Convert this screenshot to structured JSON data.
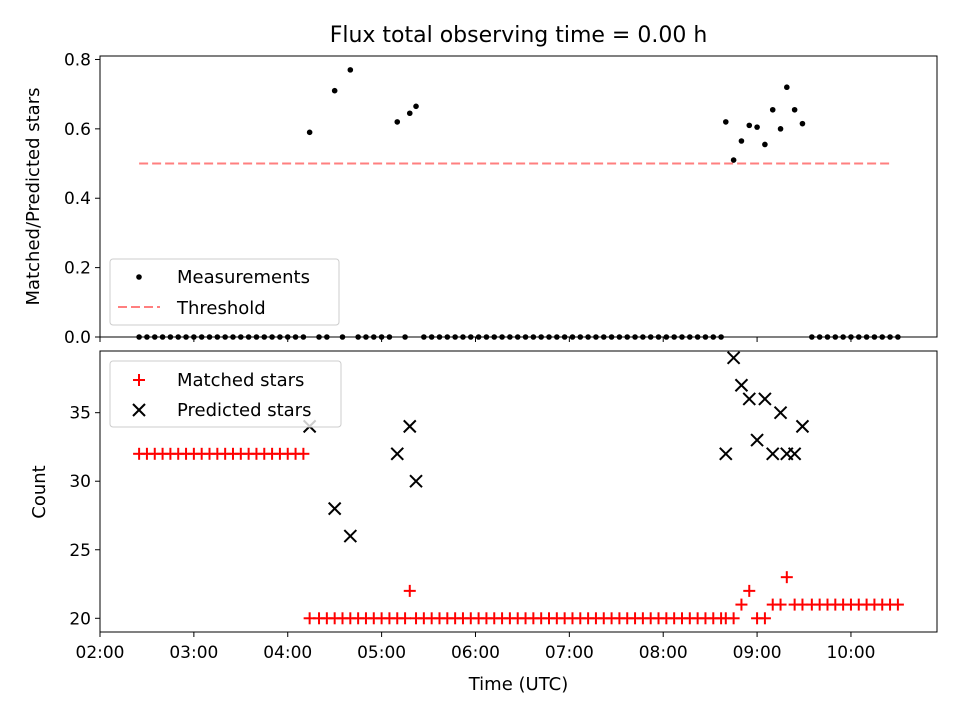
{
  "chart_data": [
    {
      "type": "scatter",
      "title": "Flux total observing time = 0.00 h",
      "xlabel": "",
      "ylabel": "Matched/Predicted stars",
      "xlim": [
        "02:00",
        "10:55"
      ],
      "ylim": [
        0,
        0.81
      ],
      "y_ticks": [
        "0.0",
        "0.2",
        "0.4",
        "0.6",
        "0.8"
      ],
      "legend_position": "lower-left",
      "series": [
        {
          "name": "Measurements",
          "marker": "dot",
          "color": "#000000",
          "points": [
            [
              "02:25",
              0
            ],
            [
              "02:30",
              0
            ],
            [
              "02:35",
              0
            ],
            [
              "02:40",
              0
            ],
            [
              "02:45",
              0
            ],
            [
              "02:50",
              0
            ],
            [
              "02:55",
              0
            ],
            [
              "03:00",
              0
            ],
            [
              "03:05",
              0
            ],
            [
              "03:10",
              0
            ],
            [
              "03:15",
              0
            ],
            [
              "03:20",
              0
            ],
            [
              "03:25",
              0
            ],
            [
              "03:30",
              0
            ],
            [
              "03:35",
              0
            ],
            [
              "03:40",
              0
            ],
            [
              "03:45",
              0
            ],
            [
              "03:50",
              0
            ],
            [
              "03:55",
              0
            ],
            [
              "04:00",
              0
            ],
            [
              "04:05",
              0
            ],
            [
              "04:10",
              0
            ],
            [
              "04:14",
              0.59
            ],
            [
              "04:20",
              0
            ],
            [
              "04:25",
              0
            ],
            [
              "04:30",
              0.71
            ],
            [
              "04:40",
              0.77
            ],
            [
              "04:35",
              0
            ],
            [
              "04:45",
              0
            ],
            [
              "04:50",
              0
            ],
            [
              "04:55",
              0
            ],
            [
              "05:00",
              0
            ],
            [
              "05:05",
              0
            ],
            [
              "05:10",
              0.62
            ],
            [
              "05:15",
              0
            ],
            [
              "05:18",
              0.645
            ],
            [
              "05:22",
              0.665
            ],
            [
              "05:27",
              0
            ],
            [
              "05:32",
              0
            ],
            [
              "05:37",
              0
            ],
            [
              "05:42",
              0
            ],
            [
              "05:47",
              0
            ],
            [
              "05:52",
              0
            ],
            [
              "05:57",
              0
            ],
            [
              "06:02",
              0
            ],
            [
              "06:07",
              0
            ],
            [
              "06:12",
              0
            ],
            [
              "06:17",
              0
            ],
            [
              "06:22",
              0
            ],
            [
              "06:27",
              0
            ],
            [
              "06:32",
              0
            ],
            [
              "06:37",
              0
            ],
            [
              "06:42",
              0
            ],
            [
              "06:47",
              0
            ],
            [
              "06:52",
              0
            ],
            [
              "06:57",
              0
            ],
            [
              "07:02",
              0
            ],
            [
              "07:07",
              0
            ],
            [
              "07:12",
              0
            ],
            [
              "07:17",
              0
            ],
            [
              "07:22",
              0
            ],
            [
              "07:27",
              0
            ],
            [
              "07:32",
              0
            ],
            [
              "07:37",
              0
            ],
            [
              "07:42",
              0
            ],
            [
              "07:47",
              0
            ],
            [
              "07:52",
              0
            ],
            [
              "07:57",
              0
            ],
            [
              "08:02",
              0
            ],
            [
              "08:07",
              0
            ],
            [
              "08:12",
              0
            ],
            [
              "08:17",
              0
            ],
            [
              "08:22",
              0
            ],
            [
              "08:27",
              0
            ],
            [
              "08:32",
              0
            ],
            [
              "08:37",
              0
            ],
            [
              "08:40",
              0.62
            ],
            [
              "08:45",
              0.51
            ],
            [
              "08:50",
              0.565
            ],
            [
              "08:55",
              0.61
            ],
            [
              "09:00",
              0.605
            ],
            [
              "09:05",
              0.555
            ],
            [
              "09:10",
              0.655
            ],
            [
              "09:15",
              0.6
            ],
            [
              "09:19",
              0.72
            ],
            [
              "09:24",
              0.655
            ],
            [
              "09:29",
              0.615
            ],
            [
              "09:35",
              0
            ],
            [
              "09:40",
              0
            ],
            [
              "09:45",
              0
            ],
            [
              "09:50",
              0
            ],
            [
              "09:55",
              0
            ],
            [
              "10:00",
              0
            ],
            [
              "10:05",
              0
            ],
            [
              "10:10",
              0
            ],
            [
              "10:15",
              0
            ],
            [
              "10:20",
              0
            ],
            [
              "10:25",
              0
            ],
            [
              "10:30",
              0
            ]
          ]
        },
        {
          "name": "Threshold",
          "marker": "dashed-line",
          "color": "#ff7f7f",
          "points": [
            [
              "02:25",
              0.5
            ],
            [
              "10:25",
              0.5
            ]
          ]
        }
      ]
    },
    {
      "type": "scatter",
      "title": "",
      "xlabel": "Time (UTC)",
      "ylabel": "Count",
      "xlim": [
        "02:00",
        "10:55"
      ],
      "ylim": [
        19.0,
        39.5
      ],
      "x_ticks": [
        "02:00",
        "03:00",
        "04:00",
        "05:00",
        "06:00",
        "07:00",
        "08:00",
        "09:00",
        "10:00"
      ],
      "y_ticks": [
        "20",
        "25",
        "30",
        "35"
      ],
      "legend_position": "upper-left",
      "series": [
        {
          "name": "Matched stars",
          "marker": "plus",
          "color": "#ff0000",
          "points": [
            [
              "02:25",
              32
            ],
            [
              "02:30",
              32
            ],
            [
              "02:35",
              32
            ],
            [
              "02:40",
              32
            ],
            [
              "02:45",
              32
            ],
            [
              "02:50",
              32
            ],
            [
              "02:55",
              32
            ],
            [
              "03:00",
              32
            ],
            [
              "03:05",
              32
            ],
            [
              "03:10",
              32
            ],
            [
              "03:15",
              32
            ],
            [
              "03:20",
              32
            ],
            [
              "03:25",
              32
            ],
            [
              "03:30",
              32
            ],
            [
              "03:35",
              32
            ],
            [
              "03:40",
              32
            ],
            [
              "03:45",
              32
            ],
            [
              "03:50",
              32
            ],
            [
              "03:55",
              32
            ],
            [
              "04:00",
              32
            ],
            [
              "04:05",
              32
            ],
            [
              "04:10",
              32
            ],
            [
              "04:14",
              20
            ],
            [
              "04:20",
              20
            ],
            [
              "04:25",
              20
            ],
            [
              "04:30",
              20
            ],
            [
              "04:35",
              20
            ],
            [
              "04:40",
              20
            ],
            [
              "04:45",
              20
            ],
            [
              "04:50",
              20
            ],
            [
              "04:55",
              20
            ],
            [
              "05:00",
              20
            ],
            [
              "05:05",
              20
            ],
            [
              "05:10",
              20
            ],
            [
              "05:15",
              20
            ],
            [
              "05:18",
              22
            ],
            [
              "05:22",
              20
            ],
            [
              "05:27",
              20
            ],
            [
              "05:32",
              20
            ],
            [
              "05:37",
              20
            ],
            [
              "05:42",
              20
            ],
            [
              "05:47",
              20
            ],
            [
              "05:52",
              20
            ],
            [
              "05:57",
              20
            ],
            [
              "06:02",
              20
            ],
            [
              "06:07",
              20
            ],
            [
              "06:12",
              20
            ],
            [
              "06:17",
              20
            ],
            [
              "06:22",
              20
            ],
            [
              "06:27",
              20
            ],
            [
              "06:32",
              20
            ],
            [
              "06:37",
              20
            ],
            [
              "06:42",
              20
            ],
            [
              "06:47",
              20
            ],
            [
              "06:52",
              20
            ],
            [
              "06:57",
              20
            ],
            [
              "07:02",
              20
            ],
            [
              "07:07",
              20
            ],
            [
              "07:12",
              20
            ],
            [
              "07:17",
              20
            ],
            [
              "07:22",
              20
            ],
            [
              "07:27",
              20
            ],
            [
              "07:32",
              20
            ],
            [
              "07:37",
              20
            ],
            [
              "07:42",
              20
            ],
            [
              "07:47",
              20
            ],
            [
              "07:52",
              20
            ],
            [
              "07:57",
              20
            ],
            [
              "08:02",
              20
            ],
            [
              "08:07",
              20
            ],
            [
              "08:12",
              20
            ],
            [
              "08:17",
              20
            ],
            [
              "08:22",
              20
            ],
            [
              "08:27",
              20
            ],
            [
              "08:32",
              20
            ],
            [
              "08:37",
              20
            ],
            [
              "08:40",
              20
            ],
            [
              "08:45",
              20
            ],
            [
              "08:50",
              21
            ],
            [
              "08:55",
              22
            ],
            [
              "09:00",
              20
            ],
            [
              "09:05",
              20
            ],
            [
              "09:10",
              21
            ],
            [
              "09:15",
              21
            ],
            [
              "09:19",
              23
            ],
            [
              "09:24",
              21
            ],
            [
              "09:29",
              21
            ],
            [
              "09:35",
              21
            ],
            [
              "09:40",
              21
            ],
            [
              "09:45",
              21
            ],
            [
              "09:50",
              21
            ],
            [
              "09:55",
              21
            ],
            [
              "10:00",
              21
            ],
            [
              "10:05",
              21
            ],
            [
              "10:10",
              21
            ],
            [
              "10:15",
              21
            ],
            [
              "10:20",
              21
            ],
            [
              "10:25",
              21
            ],
            [
              "10:30",
              21
            ]
          ]
        },
        {
          "name": "Predicted stars",
          "marker": "x",
          "color": "#000000",
          "points": [
            [
              "04:14",
              34
            ],
            [
              "04:30",
              28
            ],
            [
              "04:40",
              26
            ],
            [
              "05:10",
              32
            ],
            [
              "05:18",
              34
            ],
            [
              "05:22",
              30
            ],
            [
              "08:40",
              32
            ],
            [
              "08:45",
              39
            ],
            [
              "08:50",
              37
            ],
            [
              "08:55",
              36
            ],
            [
              "09:00",
              33
            ],
            [
              "09:05",
              36
            ],
            [
              "09:10",
              32
            ],
            [
              "09:15",
              35
            ],
            [
              "09:19",
              32
            ],
            [
              "09:24",
              32
            ],
            [
              "09:29",
              34
            ]
          ]
        }
      ]
    }
  ]
}
